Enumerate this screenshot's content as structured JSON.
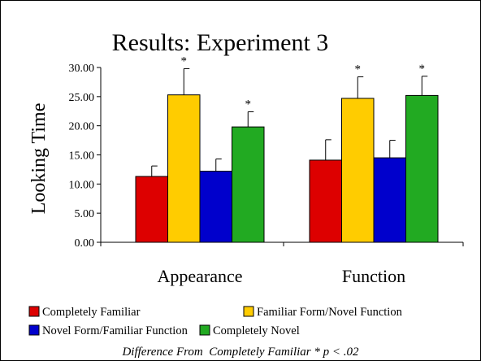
{
  "chart_data": {
    "type": "bar",
    "title": "Results: Experiment 3",
    "ylabel": "Looking Time",
    "xlabel": "",
    "ylim": [
      0,
      30
    ],
    "yticks": [
      "0.00",
      "5.00",
      "10.00",
      "15.00",
      "20.00",
      "25.00",
      "30.00"
    ],
    "categories": [
      "Appearance",
      "Function"
    ],
    "series": [
      {
        "name": "Completely Familiar",
        "color": "#dd0000",
        "values": [
          11.3,
          14.1
        ],
        "errors": [
          1.8,
          3.5
        ],
        "significant": [
          false,
          false
        ]
      },
      {
        "name": "Familiar Form/Novel Function",
        "color": "#ffcc00",
        "values": [
          25.3,
          24.7
        ],
        "errors": [
          4.5,
          3.7
        ],
        "significant": [
          true,
          true
        ]
      },
      {
        "name": "Novel Form/Familiar Function",
        "color": "#0000cc",
        "values": [
          12.2,
          14.5
        ],
        "errors": [
          2.1,
          3.0
        ],
        "significant": [
          false,
          false
        ]
      },
      {
        "name": "Completely Novel",
        "color": "#22aa22",
        "values": [
          19.8,
          25.2
        ],
        "errors": [
          2.6,
          3.3
        ],
        "significant": [
          true,
          true
        ]
      }
    ],
    "significance_marker": "*",
    "legend_position": "bottom",
    "grid": false
  },
  "footnote": "Difference From  Completely Familiar * p < .02"
}
